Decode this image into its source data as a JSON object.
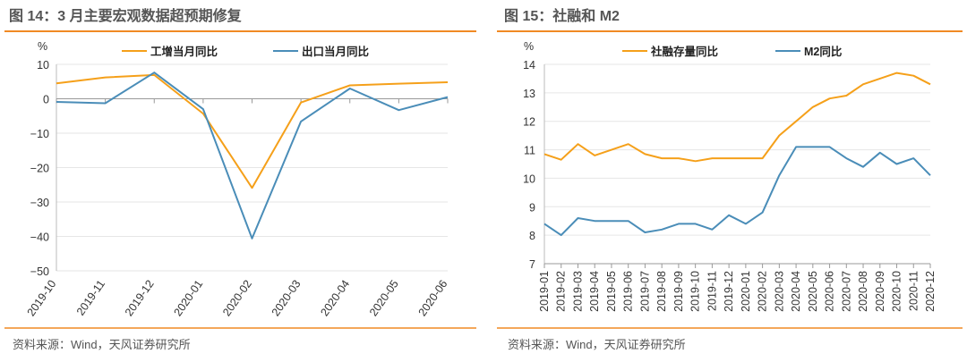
{
  "colors": {
    "accent": "#F08A24",
    "series_orange": "#F5A01A",
    "series_blue": "#4A8DB8",
    "grid": "#e6e6e6"
  },
  "chart_data": [
    {
      "type": "line",
      "title": "图 14：3 月主要宏观数据超预期修复",
      "unit": "%",
      "categories": [
        "2019-10",
        "2019-11",
        "2019-12",
        "2020-01",
        "2020-02",
        "2020-03",
        "2020-04",
        "2020-05",
        "2020-06"
      ],
      "ylim": [
        -50,
        10
      ],
      "yticks": [
        10,
        0,
        -10,
        -20,
        -30,
        -40,
        -50
      ],
      "ytick_labels": [
        "10",
        "0",
        "−10",
        "−20",
        "−30",
        "−40",
        "−50"
      ],
      "grid": true,
      "legend_position": "top",
      "series": [
        {
          "name": "工增当月同比",
          "color": "#F5A01A",
          "values": [
            4.5,
            6.2,
            6.9,
            -4.3,
            -25.9,
            -1.1,
            3.9,
            4.4,
            4.8
          ]
        },
        {
          "name": "出口当月同比",
          "color": "#4A8DB8",
          "values": [
            -0.9,
            -1.3,
            7.6,
            -3.0,
            -40.6,
            -6.6,
            3.0,
            -3.3,
            0.5
          ]
        }
      ],
      "source": "资料来源：Wind，天风证券研究所"
    },
    {
      "type": "line",
      "title": "图 15：社融和 M2",
      "unit": "%",
      "categories": [
        "2019-01",
        "2019-02",
        "2019-03",
        "2019-04",
        "2019-05",
        "2019-06",
        "2019-07",
        "2019-08",
        "2019-09",
        "2019-10",
        "2019-11",
        "2019-12",
        "2020-01",
        "2020-02",
        "2020-03",
        "2020-04",
        "2020-05",
        "2020-06",
        "2020-07",
        "2020-08",
        "2020-09",
        "2020-10",
        "2020-11",
        "2020-12"
      ],
      "ylim": [
        7,
        14
      ],
      "yticks": [
        14,
        13,
        12,
        11,
        10,
        9,
        8,
        7
      ],
      "ytick_labels": [
        "14",
        "13",
        "12",
        "11",
        "10",
        "9",
        "8",
        "7"
      ],
      "grid": true,
      "legend_position": "top",
      "series": [
        {
          "name": "社融存量同比",
          "color": "#F5A01A",
          "values": [
            10.85,
            10.65,
            11.2,
            10.8,
            11.0,
            11.2,
            10.85,
            10.7,
            10.7,
            10.6,
            10.7,
            10.7,
            10.7,
            10.7,
            11.5,
            12.0,
            12.5,
            12.8,
            12.9,
            13.3,
            13.5,
            13.7,
            13.6,
            13.3
          ]
        },
        {
          "name": "M2同比",
          "color": "#4A8DB8",
          "values": [
            8.4,
            8.0,
            8.6,
            8.5,
            8.5,
            8.5,
            8.1,
            8.2,
            8.4,
            8.4,
            8.2,
            8.7,
            8.4,
            8.8,
            10.1,
            11.1,
            11.1,
            11.1,
            10.7,
            10.4,
            10.9,
            10.5,
            10.7,
            10.1
          ]
        }
      ],
      "source": "资料来源：Wind，天风证券研究所"
    }
  ]
}
